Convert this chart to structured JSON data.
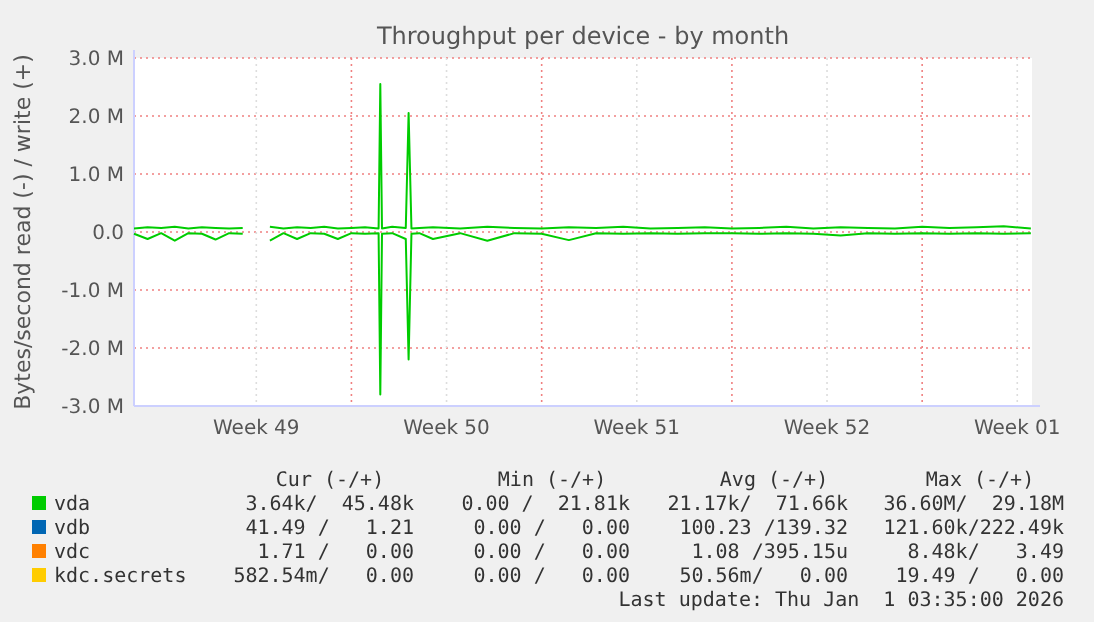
{
  "chart_data": {
    "type": "line",
    "title": "Throughput per device - by month",
    "ylabel": "Bytes/second read (-) / write (+)",
    "xlim": [
      "2025-11-30T00:00",
      "2026-01-02T01:00"
    ],
    "xticks": [
      {
        "value": "2025-12-04T12:00",
        "label": "Week 49"
      },
      {
        "value": "2025-12-08T00:00",
        "label": null
      },
      {
        "value": "2025-12-11T12:00",
        "label": "Week 50"
      },
      {
        "value": "2025-12-15T00:00",
        "label": null
      },
      {
        "value": "2025-12-18T12:00",
        "label": "Week 51"
      },
      {
        "value": "2025-12-22T00:00",
        "label": null
      },
      {
        "value": "2025-12-25T12:00",
        "label": "Week 52"
      },
      {
        "value": "2025-12-29T00:00",
        "label": null
      },
      {
        "value": "2026-01-01T12:00",
        "label": "Week 01"
      }
    ],
    "ylim": [
      -3000000,
      3000000
    ],
    "yticks": [
      {
        "value": -3000000,
        "label": "-3.0 M"
      },
      {
        "value": -2000000,
        "label": "-2.0 M"
      },
      {
        "value": -1000000,
        "label": "-1.0 M"
      },
      {
        "value": 0,
        "label": "0.0"
      },
      {
        "value": 1000000,
        "label": "1.0 M"
      },
      {
        "value": 2000000,
        "label": "2.0 M"
      },
      {
        "value": 3000000,
        "label": "3.0 M"
      }
    ],
    "grid": true,
    "legend": "bottom",
    "marker": "none",
    "line_style": "solid",
    "series": [
      {
        "name": "vda",
        "color": "#00cc00",
        "x": [
          "2025-11-30T00:00",
          "2025-11-30T12:00",
          "2025-12-01T00:00",
          "2025-12-01T12:00",
          "2025-12-02T00:00",
          "2025-12-02T12:00",
          "2025-12-03T00:00",
          "2025-12-03T12:00",
          "2025-12-04T00:00",
          "2025-12-04T12:00",
          "2025-12-05T00:00",
          "2025-12-05T12:00",
          "2025-12-06T00:00",
          "2025-12-06T12:00",
          "2025-12-07T00:00",
          "2025-12-07T12:00",
          "2025-12-08T00:00",
          "2025-12-08T12:00",
          "2025-12-09T00:00",
          "2025-12-09T01:30",
          "2025-12-09T03:00",
          "2025-12-09T12:00",
          "2025-12-10T00:00",
          "2025-12-10T02:30",
          "2025-12-10T05:00",
          "2025-12-10T12:00",
          "2025-12-11T00:00",
          "2025-12-12T00:00",
          "2025-12-13T00:00",
          "2025-12-14T00:00",
          "2025-12-15T00:00",
          "2025-12-16T00:00",
          "2025-12-17T00:00",
          "2025-12-18T00:00",
          "2025-12-19T00:00",
          "2025-12-20T00:00",
          "2025-12-21T00:00",
          "2025-12-22T00:00",
          "2025-12-23T00:00",
          "2025-12-24T00:00",
          "2025-12-25T00:00",
          "2025-12-26T00:00",
          "2025-12-27T00:00",
          "2025-12-28T00:00",
          "2025-12-29T00:00",
          "2025-12-30T00:00",
          "2025-12-31T00:00",
          "2026-01-01T00:00",
          "2026-01-02T00:00"
        ],
        "values": [
          60000,
          80000,
          70000,
          90000,
          60000,
          80000,
          70000,
          60000,
          70000,
          null,
          90000,
          60000,
          80000,
          70000,
          90000,
          60000,
          70000,
          80000,
          60000,
          2550000,
          60000,
          90000,
          70000,
          2050000,
          60000,
          70000,
          80000,
          60000,
          90000,
          70000,
          60000,
          80000,
          70000,
          90000,
          60000,
          70000,
          80000,
          60000,
          70000,
          90000,
          60000,
          80000,
          70000,
          60000,
          90000,
          70000,
          80000,
          100000,
          60000
        ]
      },
      {
        "color": "#00cc00",
        "x": [
          "2025-11-30T00:00",
          "2025-11-30T12:00",
          "2025-12-01T00:00",
          "2025-12-01T12:00",
          "2025-12-02T00:00",
          "2025-12-02T12:00",
          "2025-12-03T00:00",
          "2025-12-03T12:00",
          "2025-12-04T00:00",
          "2025-12-04T12:00",
          "2025-12-05T00:00",
          "2025-12-05T12:00",
          "2025-12-06T00:00",
          "2025-12-06T12:00",
          "2025-12-07T00:00",
          "2025-12-07T12:00",
          "2025-12-08T00:00",
          "2025-12-08T12:00",
          "2025-12-09T00:00",
          "2025-12-09T01:30",
          "2025-12-09T03:00",
          "2025-12-09T12:00",
          "2025-12-10T00:00",
          "2025-12-10T02:30",
          "2025-12-10T05:00",
          "2025-12-10T12:00",
          "2025-12-11T00:00",
          "2025-12-12T00:00",
          "2025-12-13T00:00",
          "2025-12-14T00:00",
          "2025-12-15T00:00",
          "2025-12-16T00:00",
          "2025-12-17T00:00",
          "2025-12-18T00:00",
          "2025-12-19T00:00",
          "2025-12-20T00:00",
          "2025-12-21T00:00",
          "2025-12-22T00:00",
          "2025-12-23T00:00",
          "2025-12-24T00:00",
          "2025-12-25T00:00",
          "2025-12-26T00:00",
          "2025-12-27T00:00",
          "2025-12-28T00:00",
          "2025-12-29T00:00",
          "2025-12-30T00:00",
          "2025-12-31T00:00",
          "2026-01-01T00:00",
          "2026-01-02T00:00"
        ],
        "values": [
          -30000,
          -120000,
          -20000,
          -150000,
          -20000,
          -30000,
          -130000,
          -20000,
          -30000,
          null,
          -150000,
          -20000,
          -120000,
          -20000,
          -30000,
          -120000,
          -20000,
          -30000,
          -20000,
          -2800000,
          -30000,
          -20000,
          -120000,
          -2200000,
          -30000,
          -20000,
          -120000,
          -20000,
          -150000,
          -20000,
          -30000,
          -140000,
          -20000,
          -30000,
          -20000,
          -30000,
          -20000,
          -20000,
          -30000,
          -20000,
          -30000,
          -60000,
          -20000,
          -30000,
          -20000,
          -30000,
          -20000,
          -30000,
          -20000
        ]
      },
      {
        "name": "vdb",
        "color": "#0066b3"
      },
      {
        "name": "vdc",
        "color": "#ff8000"
      },
      {
        "name": "kdc.secrets",
        "color": "#ffcc00"
      }
    ],
    "annotations": [
      "Cur (-/+)",
      "Min (-/+)",
      "Avg (-/+)",
      "Max (-/+)",
      "3.64k/  45.48k",
      "0.00 /  21.81k",
      "21.17k/  71.66k",
      "36.60M/  29.18M",
      "41.49 /   1.21",
      "0.00 /   0.00",
      "100.23 /139.32",
      "121.60k/222.49k",
      "1.71 /   0.00",
      "0.00 /   0.00",
      "1.08 /395.15u",
      "8.48k/   3.49",
      "582.54m/   0.00",
      "0.00 /   0.00",
      "50.56m/   0.00",
      "19.49 /   0.00",
      "Last update: Thu Jan  1 03:35:00 2026"
    ]
  }
}
